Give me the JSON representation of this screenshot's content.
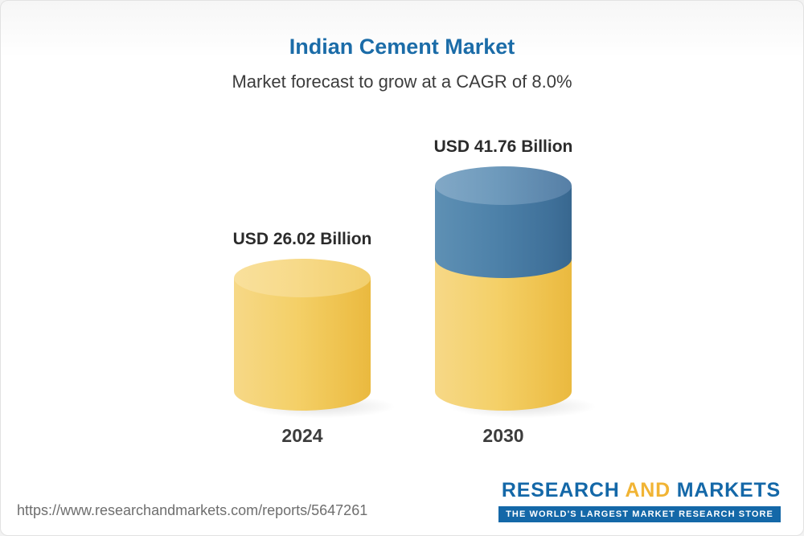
{
  "chart_data": {
    "type": "bar",
    "title": "Indian Cement Market",
    "subtitle": "Market forecast to grow at a CAGR of 8.0%",
    "cagr": "8.0%",
    "categories": [
      "2024",
      "2030"
    ],
    "values": [
      26.02,
      41.76
    ],
    "value_labels": [
      "USD 26.02 Billion",
      "USD 41.76 Billion"
    ],
    "unit": "USD Billion",
    "grid": false,
    "legend_position": "none",
    "colors": {
      "title": "#1b6ca8",
      "bar_2024": "#f2c95a",
      "bar_2030_base": "#f2c95a",
      "bar_2030_growth": "#4c80a8"
    }
  },
  "footer": {
    "url": "https://www.researchandmarkets.com/reports/5647261",
    "logo": {
      "research": "RESEARCH",
      "and": "AND",
      "markets": "MARKETS",
      "tagline": "THE WORLD'S LARGEST MARKET RESEARCH STORE"
    }
  }
}
